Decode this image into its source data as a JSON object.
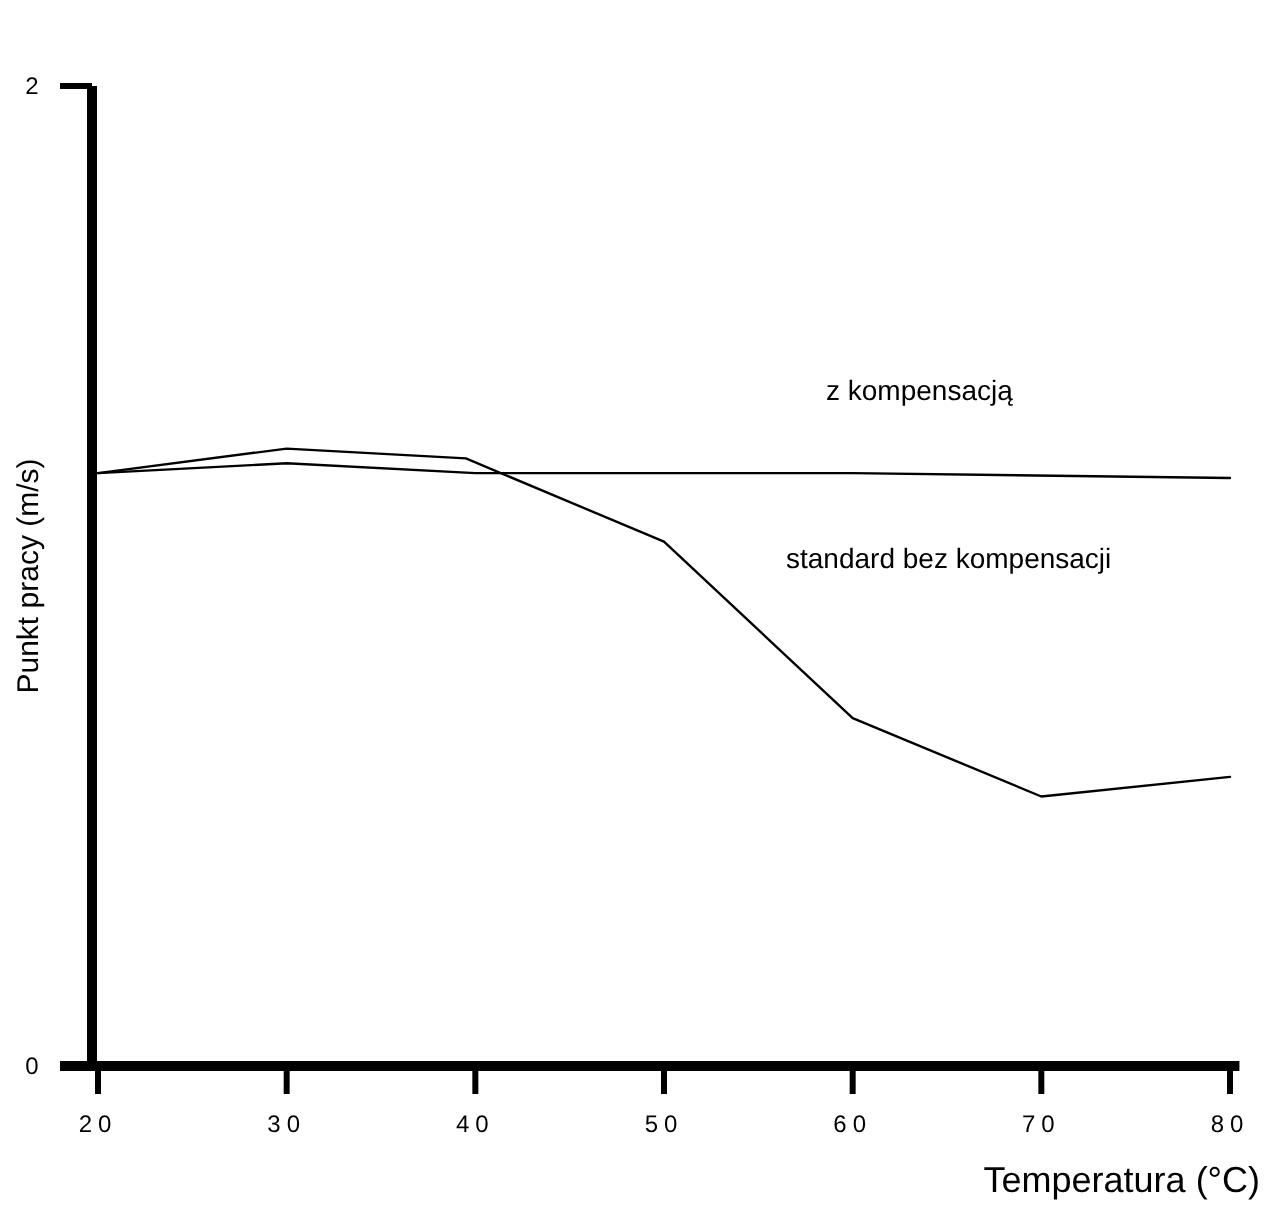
{
  "chart_data": {
    "type": "line",
    "xlabel": "Temperatura (°C)",
    "ylabel": "Punkt pracy (m/s)",
    "xlim": [
      20,
      80.5
    ],
    "xticks": [
      20,
      30,
      40,
      50,
      60,
      70,
      80
    ],
    "ylim": [
      0,
      2
    ],
    "yticks": [
      0,
      2
    ],
    "grid": false,
    "marker": "none",
    "line_style": "solid",
    "series": [
      {
        "name": "z kompensacją",
        "color": "#000000",
        "x": [
          20,
          30,
          40,
          60,
          80
        ],
        "values": [
          1.21,
          1.23,
          1.21,
          1.21,
          1.2
        ]
      },
      {
        "name": "standard bez kompensacji",
        "color": "#000000",
        "x": [
          20,
          30,
          39.5,
          50,
          60,
          70,
          80
        ],
        "values": [
          1.21,
          1.26,
          1.24,
          1.07,
          0.71,
          0.55,
          0.59
        ]
      }
    ]
  }
}
